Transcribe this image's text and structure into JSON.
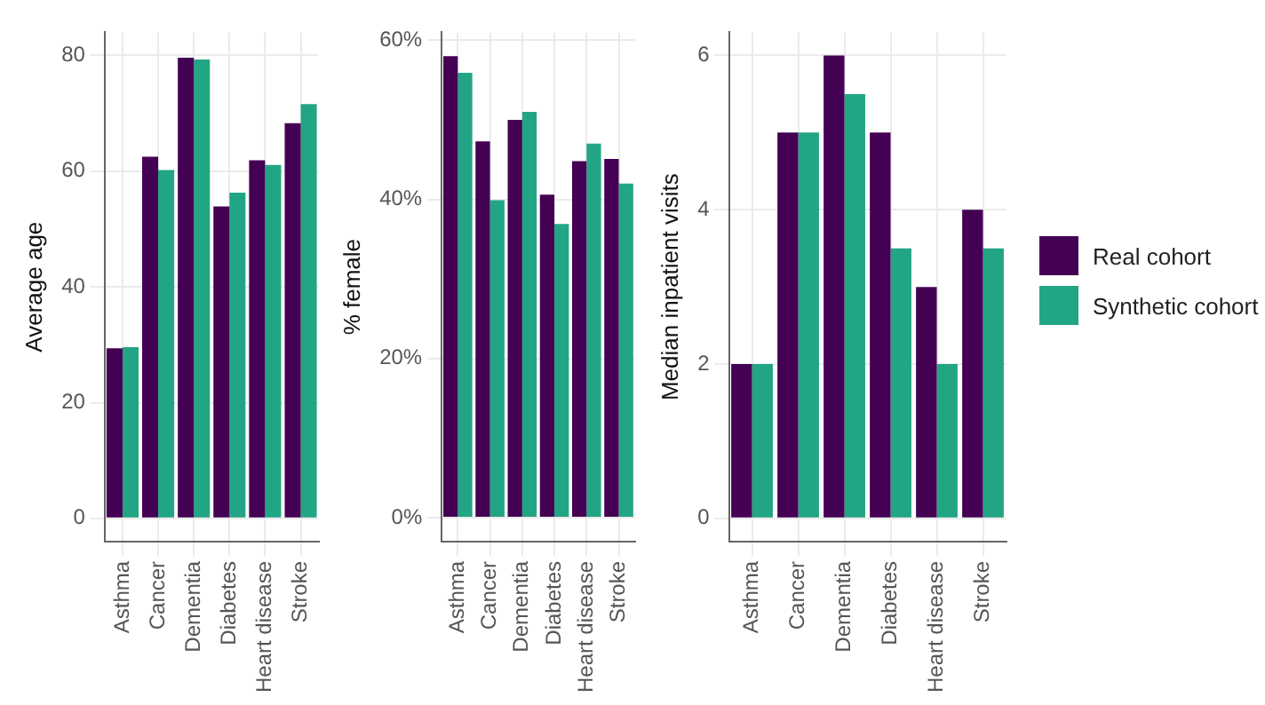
{
  "chart_data": [
    {
      "type": "bar",
      "ylabel": "Average age",
      "categories": [
        "Asthma",
        "Cancer",
        "Dementia",
        "Diabetes",
        "Heart disease",
        "Stroke"
      ],
      "series": [
        {
          "color": "#440154",
          "values": [
            29.4,
            62.5,
            79.6,
            53.9,
            61.9,
            68.3
          ]
        },
        {
          "color": "#21a585",
          "values": [
            29.6,
            60.2,
            79.3,
            56.3,
            61.1,
            71.6
          ]
        }
      ],
      "ylim": [
        -4,
        84
      ],
      "yticks": [
        0,
        20,
        40,
        60,
        80
      ],
      "grid": true,
      "legend": false
    },
    {
      "type": "bar",
      "ylabel": "% female",
      "categories": [
        "Asthma",
        "Cancer",
        "Dementia",
        "Diabetes",
        "Heart disease",
        "Stroke"
      ],
      "series": [
        {
          "color": "#440154",
          "values": [
            58.0,
            47.3,
            50.0,
            40.6,
            44.8,
            45.1
          ]
        },
        {
          "color": "#21a585",
          "values": [
            55.9,
            39.9,
            51.0,
            36.9,
            47.0,
            42.0
          ]
        }
      ],
      "ylim": [
        -3,
        61
      ],
      "yticks": [
        {
          "value": 0,
          "label": "0%"
        },
        {
          "value": 20,
          "label": "20%"
        },
        {
          "value": 40,
          "label": "40%"
        },
        {
          "value": 60,
          "label": "60%"
        }
      ],
      "grid": true,
      "legend": false
    },
    {
      "type": "bar",
      "ylabel": "Median inpatient visits",
      "categories": [
        "Asthma",
        "Cancer",
        "Dementia",
        "Diabetes",
        "Heart disease",
        "Stroke"
      ],
      "series": [
        {
          "name": "Real cohort",
          "color": "#440154",
          "values": [
            2,
            5,
            6,
            5,
            3,
            4
          ]
        },
        {
          "name": "Synthetic cohort",
          "color": "#21a585",
          "values": [
            2,
            5,
            5.5,
            3.5,
            2,
            3.5
          ]
        }
      ],
      "ylim": [
        -0.3,
        6.3
      ],
      "yticks": [
        0,
        2,
        4,
        6
      ],
      "grid": true,
      "legend": "right"
    }
  ]
}
